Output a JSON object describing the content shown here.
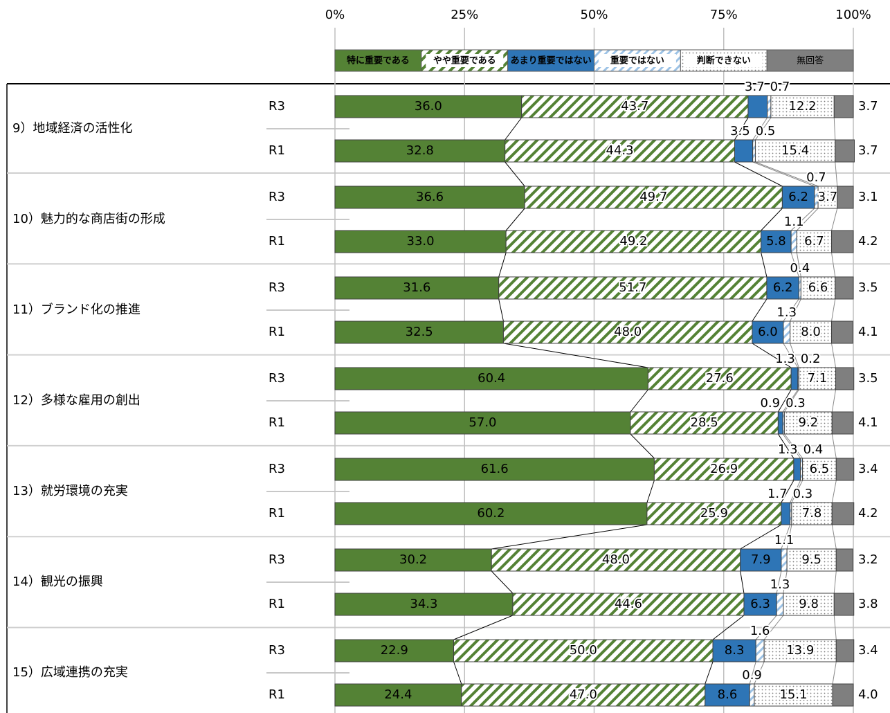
{
  "chart_data": {
    "type": "stacked-bar-horizontal",
    "groups": [
      "9）地域経済の活性化",
      "10）魅力的な商店街の形成",
      "11）ブランド化の推進",
      "12）多様な雇用の創出",
      "13）就労環境の充実",
      "14）観光の振興",
      "15）広域連携の充実"
    ],
    "categories": [
      "R3",
      "R1",
      "R3",
      "R1",
      "R3",
      "R1",
      "R3",
      "R1",
      "R3",
      "R1",
      "R3",
      "R1",
      "R3",
      "R1"
    ],
    "xlim": [
      0,
      100
    ],
    "xticks": [
      {
        "value": 0,
        "label": "0%"
      },
      {
        "value": 25,
        "label": "25%"
      },
      {
        "value": 50,
        "label": "50%"
      },
      {
        "value": 75,
        "label": "75%"
      },
      {
        "value": 100,
        "label": "100%"
      }
    ],
    "grid": true,
    "series": [
      {
        "name": "特に重要である",
        "color": "#548235",
        "values": [
          36.0,
          32.8,
          36.6,
          33.0,
          31.6,
          32.5,
          60.4,
          57.0,
          61.6,
          60.2,
          30.2,
          34.3,
          22.9,
          24.4
        ],
        "value_labels": [
          "36.0",
          "32.8",
          "36.6",
          "33.0",
          "31.6",
          "32.5",
          "60.4",
          "57.0",
          "61.6",
          "60.2",
          "30.2",
          "34.3",
          "22.9",
          "24.4"
        ]
      },
      {
        "name": "やや重要である",
        "color": "#548235",
        "values": [
          43.7,
          44.3,
          49.7,
          49.2,
          51.7,
          48.0,
          27.6,
          28.5,
          26.9,
          25.9,
          48.0,
          44.6,
          50.0,
          47.0
        ],
        "value_labels": [
          "43.7",
          "44.3",
          "49.7",
          "49.2",
          "51.7",
          "48.0",
          "27.6",
          "28.5",
          "26.9",
          "25.9",
          "48.0",
          "44.6",
          "50.0",
          "47.0"
        ]
      },
      {
        "name": "あまり重要ではない",
        "color": "#2e75b6",
        "values": [
          3.7,
          3.5,
          6.2,
          5.8,
          6.2,
          6.0,
          1.3,
          0.9,
          1.3,
          1.7,
          7.9,
          6.3,
          8.3,
          8.6
        ],
        "value_labels": [
          "3.7",
          "3.5",
          "6.2",
          "5.8",
          "6.2",
          "6.0",
          "1.3",
          "0.9",
          "1.3",
          "1.7",
          "7.9",
          "6.3",
          "8.3",
          "8.6"
        ]
      },
      {
        "name": "重要ではない",
        "color": "#9dc3e6",
        "values": [
          0.7,
          0.5,
          0.7,
          1.1,
          0.4,
          1.3,
          0.2,
          0.3,
          0.4,
          0.3,
          1.1,
          1.3,
          1.6,
          0.9
        ],
        "value_labels": [
          "0.7",
          "0.5",
          "0.7",
          "1.1",
          "0.4",
          "1.3",
          "0.2",
          "0.3",
          "0.4",
          "0.3",
          "1.1",
          "1.3",
          "1.6",
          "0.9"
        ]
      },
      {
        "name": "判断できない",
        "color": "#a6a6a6",
        "values": [
          12.2,
          15.4,
          3.7,
          6.7,
          6.6,
          8.0,
          7.1,
          9.2,
          6.5,
          7.8,
          9.5,
          9.8,
          13.9,
          15.1
        ],
        "value_labels": [
          "12.2",
          "15.4",
          "3.7",
          "6.7",
          "6.6",
          "8.0",
          "7.1",
          "9.2",
          "6.5",
          "7.8",
          "9.5",
          "9.8",
          "13.9",
          "15.1"
        ]
      },
      {
        "name": "無回答",
        "color": "#7f7f7f",
        "values": [
          3.7,
          3.7,
          3.1,
          4.2,
          3.5,
          4.1,
          3.5,
          4.1,
          3.4,
          4.2,
          3.2,
          3.8,
          3.4,
          4.0
        ],
        "value_labels": [
          "3.7",
          "3.7",
          "3.1",
          "4.2",
          "3.5",
          "4.1",
          "3.5",
          "4.1",
          "3.4",
          "4.2",
          "3.2",
          "3.8",
          "3.4",
          "4.0"
        ]
      }
    ]
  }
}
